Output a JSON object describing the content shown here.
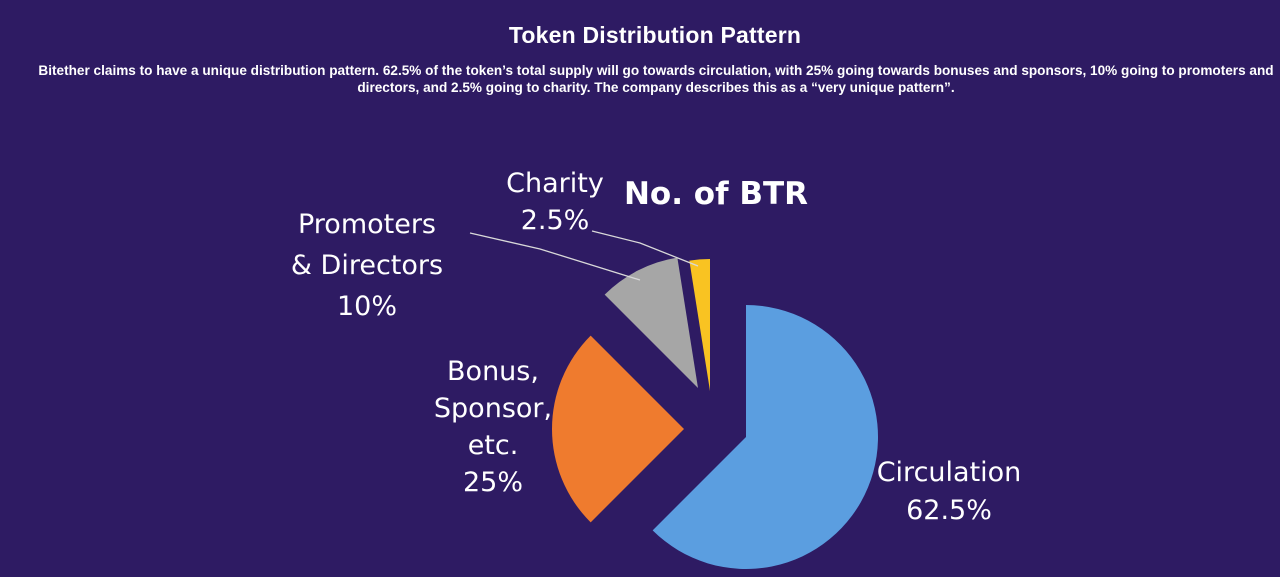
{
  "header": {
    "title": "Token Distribution Pattern",
    "description": "Bitether claims to have a unique distribution pattern. 62.5% of the token’s total supply will go towards circulation, with 25% going towards bonuses and sponsors, 10% going to promoters and directors, and 2.5% going to charity. The company describes this as a “very unique pattern”."
  },
  "chart_data": {
    "type": "pie",
    "title": "No. of BTR",
    "slices": [
      {
        "name": "Circulation",
        "label_lines": [
          "Circulation",
          "62.5%"
        ],
        "value": 62.5,
        "color": "#5b9ee0"
      },
      {
        "name": "Bonus, Sponsor, etc.",
        "label_lines": [
          "Bonus,",
          "Sponsor,",
          "etc.",
          "25%"
        ],
        "value": 25,
        "color": "#ef7b2e"
      },
      {
        "name": "Promoters & Directors",
        "label_lines": [
          "Promoters",
          "& Directors",
          "10%"
        ],
        "value": 10,
        "color": "#a6a6a6"
      },
      {
        "name": "Charity",
        "label_lines": [
          "Charity",
          "2.5%"
        ],
        "value": 2.5,
        "color": "#f9c322"
      }
    ],
    "start_angle_deg": 0,
    "direction": "clockwise",
    "exploded": true,
    "leader_lines": [
      "Promoters & Directors",
      "Charity"
    ]
  },
  "colors": {
    "background": "#2e1b63",
    "text": "#ffffff"
  }
}
